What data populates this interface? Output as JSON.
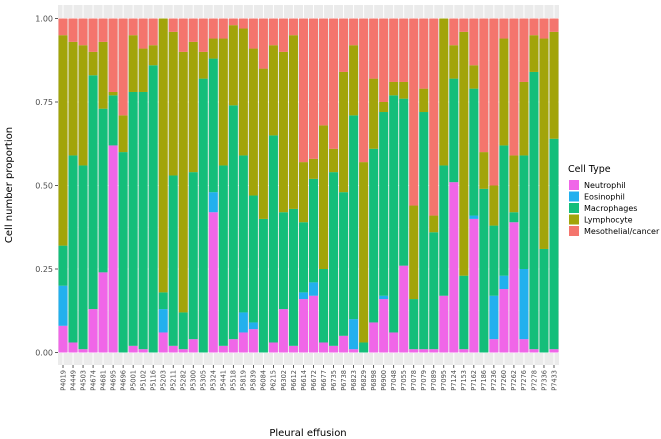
{
  "chart_data": {
    "type": "bar",
    "stacked": true,
    "title": "",
    "xlabel": "Pleural effusion",
    "ylabel": "Cell number proportion",
    "ylim": [
      0,
      1
    ],
    "ytick_labels": [
      "0.00",
      "0.25",
      "0.50",
      "0.75",
      "1.00"
    ],
    "grid": true,
    "legend_position": "right",
    "legend_title": "Cell Type",
    "categories": [
      "P4019",
      "P4449",
      "P4503",
      "P4674",
      "P4681",
      "P4695",
      "P4696",
      "P5001",
      "P5102",
      "P5116",
      "P5203",
      "P5211",
      "P5282",
      "P5300",
      "P5305",
      "P5324",
      "P5441",
      "P5518",
      "P5819",
      "P5839",
      "P6084",
      "P6215",
      "P6302",
      "P6612",
      "P6614",
      "P6672",
      "P6677",
      "P6735",
      "P6738",
      "P6823",
      "P6829",
      "P6898",
      "P6900",
      "P7048",
      "P7055",
      "P7078",
      "P7079",
      "P7089",
      "P7095",
      "P7124",
      "P7153",
      "P7162",
      "P7186",
      "P7236",
      "P7260",
      "P7262",
      "P7276",
      "P7278",
      "P7336",
      "P7433"
    ],
    "series": [
      {
        "name": "Neutrophil",
        "color": "#F066E8",
        "values": [
          0.08,
          0.03,
          0.01,
          0.13,
          0.24,
          0.62,
          0,
          0.02,
          0.01,
          0,
          0.06,
          0.02,
          0.01,
          0.04,
          0,
          0.42,
          0.02,
          0.04,
          0.06,
          0.07,
          0,
          0.03,
          0.13,
          0.02,
          0.16,
          0.17,
          0.03,
          0.02,
          0.05,
          0.01,
          0,
          0.09,
          0.16,
          0.06,
          0.26,
          0.01,
          0.01,
          0.01,
          0.17,
          0.51,
          0.01,
          0.4,
          0,
          0.04,
          0.19,
          0.39,
          0.04,
          0.01,
          0,
          0.01
        ]
      },
      {
        "name": "Eosinophil",
        "color": "#22B0EE",
        "values": [
          0.12,
          0,
          0,
          0,
          0,
          0,
          0,
          0,
          0,
          0,
          0.07,
          0,
          0,
          0,
          0,
          0.06,
          0,
          0,
          0.06,
          0.02,
          0,
          0,
          0,
          0,
          0.02,
          0.04,
          0,
          0,
          0,
          0.09,
          0,
          0,
          0.01,
          0,
          0,
          0,
          0,
          0,
          0,
          0,
          0,
          0.01,
          0,
          0.13,
          0.04,
          0,
          0.21,
          0,
          0,
          0
        ]
      },
      {
        "name": "Macrophages",
        "color": "#14BE7A",
        "values": [
          0.12,
          0.56,
          0.55,
          0.7,
          0.49,
          0.15,
          0.6,
          0.76,
          0.77,
          0.86,
          0.05,
          0.51,
          0.11,
          0.5,
          0.82,
          0.4,
          0.54,
          0.7,
          0.47,
          0.38,
          0.4,
          0.62,
          0.29,
          0.41,
          0.21,
          0.31,
          0.22,
          0.52,
          0.43,
          0.61,
          0.03,
          0.52,
          0.55,
          0.71,
          0.5,
          0.15,
          0.71,
          0.35,
          0.39,
          0.31,
          0.22,
          0.38,
          0.49,
          0.21,
          0.39,
          0.03,
          0.34,
          0.83,
          0.31,
          0.63
        ]
      },
      {
        "name": "Lymphocyte",
        "color": "#A2A40A",
        "values": [
          0.63,
          0.34,
          0.36,
          0.07,
          0.2,
          0.01,
          0.11,
          0.17,
          0.13,
          0.06,
          0.82,
          0.43,
          0.78,
          0.39,
          0.08,
          0.06,
          0.38,
          0.24,
          0.38,
          0.44,
          0.45,
          0.27,
          0.48,
          0.52,
          0.18,
          0.06,
          0.43,
          0.07,
          0.36,
          0.21,
          0.54,
          0.21,
          0.03,
          0.04,
          0.05,
          0.28,
          0.07,
          0.05,
          0.44,
          0.1,
          0.73,
          0.07,
          0.11,
          0.12,
          0.32,
          0.17,
          0.22,
          0.11,
          0.63,
          0.32
        ]
      },
      {
        "name": "Mesothelial/cancer",
        "color": "#F4756D",
        "values": [
          0.05,
          0.07,
          0.08,
          0.1,
          0.07,
          0.22,
          0.29,
          0.05,
          0.09,
          0.08,
          0,
          0.04,
          0.1,
          0.07,
          0.1,
          0.06,
          0.06,
          0.02,
          0.03,
          0.09,
          0.15,
          0.08,
          0.1,
          0.05,
          0.43,
          0.42,
          0.32,
          0.39,
          0.16,
          0.08,
          0.43,
          0.18,
          0.25,
          0.19,
          0.19,
          0.56,
          0.21,
          0.59,
          0,
          0.08,
          0.04,
          0.14,
          0.4,
          0.5,
          0.06,
          0.41,
          0.19,
          0.05,
          0.06,
          0.04
        ]
      }
    ]
  }
}
